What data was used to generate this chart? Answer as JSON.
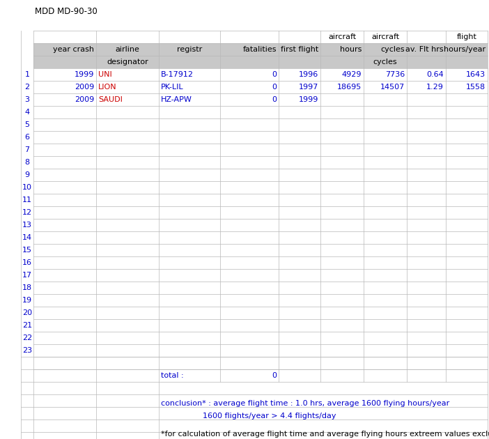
{
  "title": "MDD MD-90-30",
  "header_bg": "#c8c8c8",
  "grid_color": "#b8b8b8",
  "text_color_blue": "#0000cc",
  "text_color_red": "#cc0000",
  "text_color_black": "#000000",
  "bg_color": "#ffffff",
  "total_label": "total :",
  "total_value": "0",
  "conclusion_line1": "conclusion* : average flight time : 1.0 hrs, average 1600 flying hours/year",
  "conclusion_line2": "1600 flights/year > 4.4 flights/day",
  "footnote": "*for calculation of average flight time and average flying hours extreem values exclude",
  "row_data": [
    [
      "1999",
      "UNI",
      "B-17912",
      "0",
      "1996",
      "4929",
      "7736",
      "0.64",
      "1643"
    ],
    [
      "2009",
      "LION",
      "PK-LIL",
      "0",
      "1997",
      "18695",
      "14507",
      "1.29",
      "1558"
    ],
    [
      "2009",
      "SAUDI",
      "HZ-APW",
      "0",
      "1999",
      "",
      "",
      "",
      ""
    ]
  ],
  "font_size": 8.0,
  "title_font_size": 8.5
}
